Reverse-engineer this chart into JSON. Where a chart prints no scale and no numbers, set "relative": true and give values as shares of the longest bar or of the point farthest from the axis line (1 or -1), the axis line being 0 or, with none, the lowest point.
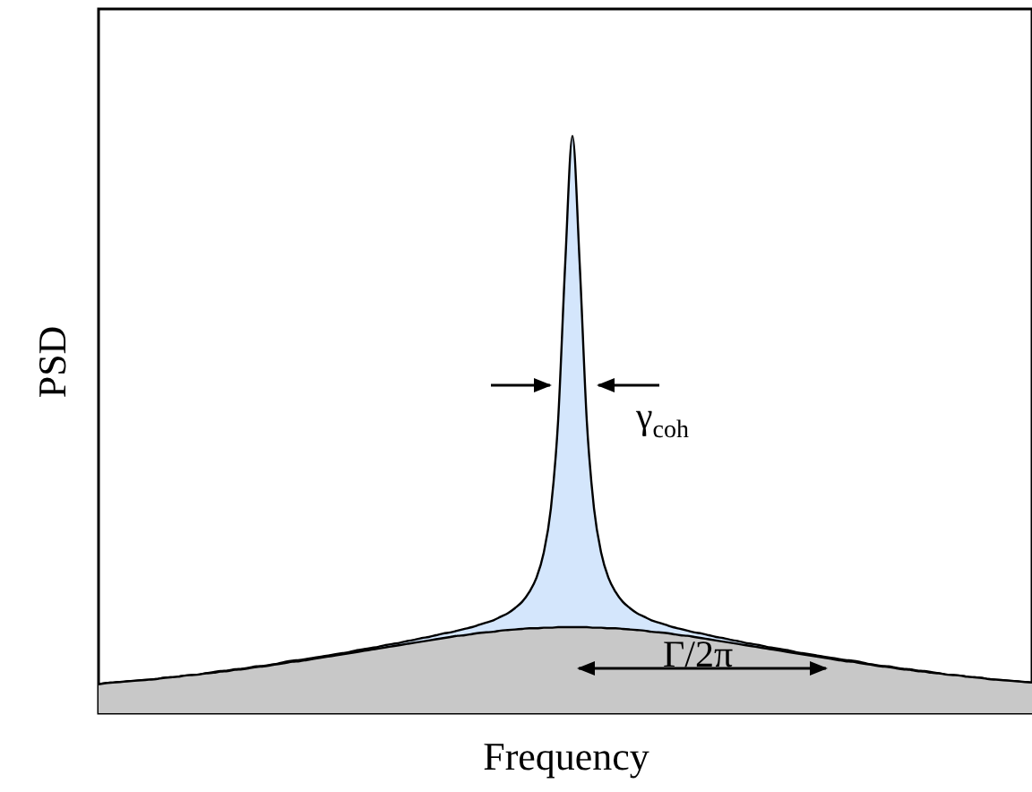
{
  "chart_data": {
    "type": "area",
    "relative": true,
    "xlabel": "Frequency",
    "ylabel": "PSD",
    "grid": false,
    "categories": [
      null,
      null,
      null,
      null,
      null,
      null,
      null,
      null,
      null,
      null,
      null,
      null,
      null,
      null,
      null,
      null,
      null,
      null,
      null,
      null,
      null,
      null,
      null,
      null,
      null,
      null,
      null,
      null,
      null,
      null,
      null,
      null,
      null,
      null,
      null,
      null,
      null,
      null,
      null,
      null,
      null,
      null,
      null,
      null,
      null,
      null,
      null,
      null,
      null,
      null,
      null,
      null,
      null,
      null,
      null,
      null,
      null,
      null,
      null,
      null,
      null,
      null,
      null,
      null,
      null,
      null,
      null,
      null,
      null,
      null,
      null,
      null,
      null,
      null,
      null,
      null,
      null,
      null,
      null,
      null,
      null,
      null,
      null,
      null,
      null,
      null,
      null,
      null,
      null,
      null,
      null,
      null,
      null,
      null,
      null,
      null,
      null,
      null,
      null,
      null,
      null,
      null,
      null,
      null,
      null,
      null,
      null,
      null,
      null,
      null,
      null,
      null,
      null,
      null,
      null,
      null,
      null,
      null,
      null,
      null,
      null,
      null,
      null,
      null,
      null,
      null,
      null,
      null,
      null,
      null,
      null
    ],
    "series": [
      {
        "color": "#d4e6fc",
        "values": [
          0.05,
          0.052,
          0.053,
          0.054,
          0.055,
          0.056,
          0.057,
          0.058,
          0.059,
          0.061,
          0.062,
          0.063,
          0.065,
          0.066,
          0.067,
          0.069,
          0.071,
          0.073,
          0.074,
          0.076,
          0.077,
          0.079,
          0.081,
          0.082,
          0.084,
          0.086,
          0.089,
          0.091,
          0.092,
          0.094,
          0.096,
          0.098,
          0.1,
          0.102,
          0.104,
          0.106,
          0.109,
          0.111,
          0.113,
          0.115,
          0.118,
          0.12,
          0.122,
          0.125,
          0.127,
          0.13,
          0.132,
          0.135,
          0.138,
          0.14,
          0.143,
          0.146,
          0.149,
          0.153,
          0.157,
          0.161,
          0.167,
          0.173,
          0.182,
          0.193,
          0.21,
          0.235,
          0.278,
          0.355,
          0.506,
          0.781,
          1.0,
          0.781,
          0.506,
          0.355,
          0.278,
          0.235,
          0.21,
          0.193,
          0.182,
          0.173,
          0.167,
          0.161,
          0.157,
          0.153,
          0.149,
          0.146,
          0.143,
          0.14,
          0.138,
          0.135,
          0.132,
          0.13,
          0.127,
          0.125,
          0.122,
          0.12,
          0.118,
          0.115,
          0.113,
          0.111,
          0.109,
          0.106,
          0.104,
          0.102,
          0.1,
          0.098,
          0.096,
          0.094,
          0.092,
          0.091,
          0.089,
          0.086,
          0.084,
          0.082,
          0.081,
          0.079,
          0.077,
          0.076,
          0.074,
          0.073,
          0.071,
          0.069,
          0.067,
          0.066,
          0.065,
          0.063,
          0.062,
          0.061,
          0.059,
          0.058,
          0.057,
          0.056,
          0.055,
          0.054,
          0.053
        ]
      },
      {
        "color": "#c8c8c8",
        "values": [
          0.05,
          0.052,
          0.053,
          0.054,
          0.055,
          0.056,
          0.057,
          0.058,
          0.059,
          0.061,
          0.062,
          0.063,
          0.065,
          0.066,
          0.067,
          0.069,
          0.07,
          0.072,
          0.073,
          0.075,
          0.076,
          0.078,
          0.08,
          0.081,
          0.083,
          0.085,
          0.087,
          0.089,
          0.09,
          0.092,
          0.094,
          0.096,
          0.098,
          0.1,
          0.102,
          0.104,
          0.106,
          0.108,
          0.11,
          0.112,
          0.114,
          0.116,
          0.118,
          0.12,
          0.122,
          0.124,
          0.126,
          0.128,
          0.13,
          0.132,
          0.134,
          0.135,
          0.137,
          0.139,
          0.14,
          0.141,
          0.143,
          0.144,
          0.145,
          0.146,
          0.147,
          0.147,
          0.148,
          0.148,
          0.149,
          0.149,
          0.149,
          0.149,
          0.149,
          0.148,
          0.148,
          0.147,
          0.147,
          0.146,
          0.145,
          0.144,
          0.143,
          0.141,
          0.14,
          0.139,
          0.137,
          0.135,
          0.134,
          0.132,
          0.13,
          0.128,
          0.126,
          0.124,
          0.122,
          0.12,
          0.118,
          0.116,
          0.114,
          0.112,
          0.11,
          0.108,
          0.106,
          0.104,
          0.102,
          0.1,
          0.098,
          0.096,
          0.094,
          0.092,
          0.09,
          0.089,
          0.087,
          0.085,
          0.083,
          0.081,
          0.08,
          0.078,
          0.076,
          0.075,
          0.073,
          0.072,
          0.07,
          0.069,
          0.067,
          0.066,
          0.065,
          0.063,
          0.062,
          0.061,
          0.059,
          0.058,
          0.057,
          0.056,
          0.055,
          0.054,
          0.053
        ]
      }
    ],
    "annotations": [
      "γ$_{coh}$",
      "Γ/2π"
    ]
  }
}
